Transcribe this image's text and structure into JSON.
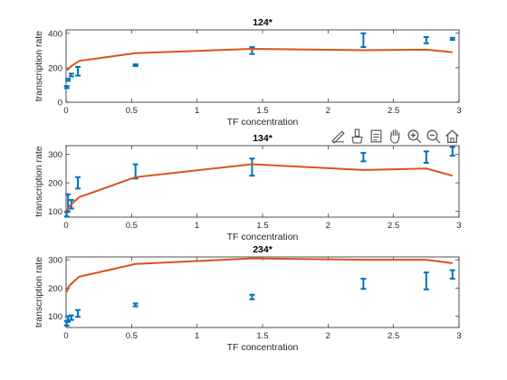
{
  "figure": {
    "toolbar": [
      {
        "name": "edit-plot-icon",
        "tooltip": "Edit"
      },
      {
        "name": "brush-icon",
        "tooltip": "Brush"
      },
      {
        "name": "data-tips-icon",
        "tooltip": "Data Tips"
      },
      {
        "name": "pan-icon",
        "tooltip": "Pan"
      },
      {
        "name": "zoom-in-icon",
        "tooltip": "Zoom In"
      },
      {
        "name": "zoom-out-icon",
        "tooltip": "Zoom Out"
      },
      {
        "name": "home-icon",
        "tooltip": "Restore View"
      }
    ],
    "colors": {
      "data": "#0072BD",
      "model": "#D95319",
      "axis": "#262626"
    }
  },
  "chart_data": [
    {
      "type": "scatter",
      "title": "124*",
      "xlabel": "TF concentration",
      "ylabel": "transcription rate",
      "xlim": [
        0,
        3
      ],
      "ylim": [
        0,
        420
      ],
      "xticks": [
        0,
        0.5,
        1,
        1.5,
        2,
        2.5,
        3
      ],
      "xticklabels": [
        "0",
        "0.5",
        "1",
        "1.5",
        "2",
        "2.5",
        "3"
      ],
      "yticks": [
        0,
        200,
        400
      ],
      "yticklabels": [
        "0",
        "200",
        "400"
      ],
      "grid": false,
      "series": [
        {
          "kind": "errorbar",
          "x": [
            0.005,
            0.015,
            0.04,
            0.09,
            0.53,
            1.42,
            2.27,
            2.75,
            2.95
          ],
          "y": [
            88,
            130,
            158,
            180,
            215,
            300,
            360,
            360,
            368
          ],
          "err": [
            6,
            6,
            8,
            25,
            5,
            20,
            40,
            18,
            6
          ]
        },
        {
          "kind": "line",
          "x": [
            0.005,
            0.02,
            0.04,
            0.1,
            0.53,
            1.42,
            2.27,
            2.75,
            2.95
          ],
          "y": [
            185,
            195,
            210,
            240,
            285,
            310,
            302,
            305,
            290
          ]
        }
      ]
    },
    {
      "type": "scatter",
      "title": "134*",
      "xlabel": "TF concentration",
      "ylabel": "transcription rate",
      "xlim": [
        0,
        3
      ],
      "ylim": [
        80,
        330
      ],
      "xticks": [
        0,
        0.5,
        1,
        1.5,
        2,
        2.5,
        3
      ],
      "xticklabels": [
        "0",
        "0.5",
        "1",
        "1.5",
        "2",
        "2.5",
        "3"
      ],
      "yticks": [
        100,
        200,
        300
      ],
      "yticklabels": [
        "100",
        "200",
        "300"
      ],
      "grid": false,
      "series": [
        {
          "kind": "errorbar",
          "x": [
            0.005,
            0.015,
            0.04,
            0.09,
            0.53,
            1.42,
            2.27,
            2.75,
            2.95
          ],
          "y": [
            90,
            130,
            125,
            200,
            240,
            255,
            290,
            290,
            310
          ],
          "err": [
            8,
            30,
            15,
            20,
            25,
            30,
            15,
            20,
            15
          ]
        },
        {
          "kind": "line",
          "x": [
            0.005,
            0.02,
            0.04,
            0.1,
            0.53,
            1.42,
            2.27,
            2.75,
            2.95
          ],
          "y": [
            100,
            115,
            125,
            150,
            220,
            265,
            245,
            250,
            225
          ]
        }
      ]
    },
    {
      "type": "scatter",
      "title": "234*",
      "xlabel": "TF concentration",
      "ylabel": "transcription rate",
      "xlim": [
        0,
        3
      ],
      "ylim": [
        60,
        310
      ],
      "xticks": [
        0,
        0.5,
        1,
        1.5,
        2,
        2.5,
        3
      ],
      "xticklabels": [
        "0",
        "0.5",
        "1",
        "1.5",
        "2",
        "2.5",
        "3"
      ],
      "yticks": [
        100,
        200,
        300
      ],
      "yticklabels": [
        "100",
        "200",
        "300"
      ],
      "grid": false,
      "series": [
        {
          "kind": "errorbar",
          "x": [
            0.005,
            0.015,
            0.04,
            0.09,
            0.53,
            1.42,
            2.27,
            2.75,
            2.95
          ],
          "y": [
            75,
            90,
            95,
            110,
            140,
            168,
            215,
            225,
            248
          ],
          "err": [
            8,
            10,
            8,
            12,
            5,
            8,
            18,
            30,
            15
          ]
        },
        {
          "kind": "line",
          "x": [
            0.005,
            0.02,
            0.04,
            0.1,
            0.53,
            1.42,
            2.27,
            2.75,
            2.95
          ],
          "y": [
            185,
            205,
            215,
            240,
            285,
            305,
            300,
            300,
            288
          ]
        }
      ]
    }
  ]
}
